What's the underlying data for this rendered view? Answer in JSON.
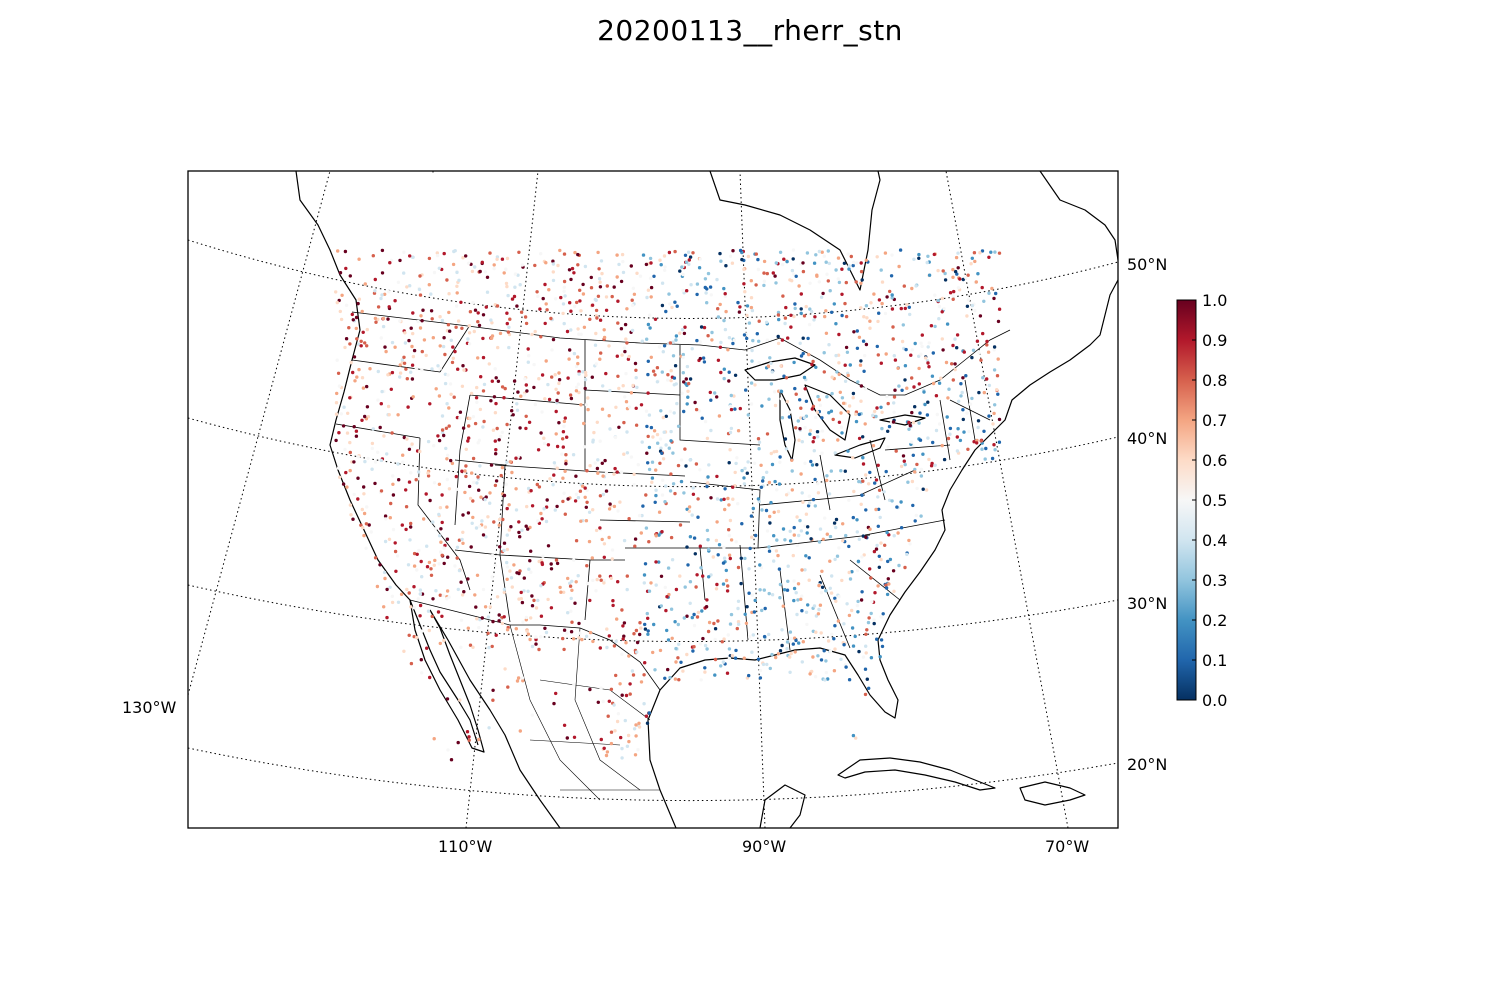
{
  "title": "20200113__rherr_stn",
  "map": {
    "projection": "lambert-conformal",
    "meridian_labels": [
      "130°W",
      "110°W",
      "90°W",
      "70°W"
    ],
    "parallel_labels": [
      "20°N",
      "30°N",
      "40°N",
      "50°N"
    ],
    "gridline_style": "dotted",
    "colormap": "RdBu_r",
    "colors": {
      "low": "#053061",
      "mid": "#f7f7f7",
      "high": "#67001f"
    }
  },
  "colorbar": {
    "min": 0.0,
    "max": 1.0,
    "tick_labels": [
      "0.0",
      "0.1",
      "0.2",
      "0.3",
      "0.4",
      "0.5",
      "0.6",
      "0.7",
      "0.8",
      "0.9",
      "1.0"
    ]
  }
}
